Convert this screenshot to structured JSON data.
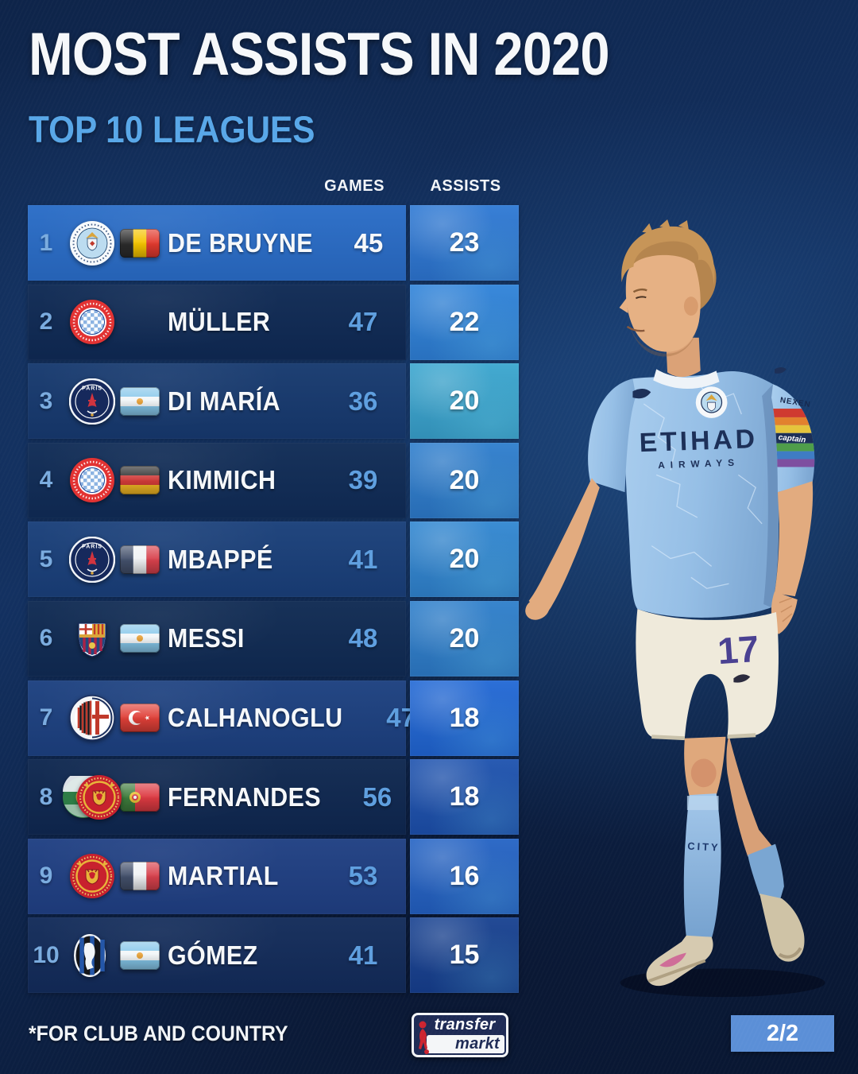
{
  "header": {
    "title": "MOST ASSISTS IN 2020",
    "subtitle": "TOP 10 LEAGUES"
  },
  "table": {
    "columns": {
      "games": "GAMES",
      "assists": "ASSISTS"
    },
    "rows": [
      {
        "rank": "1",
        "name": "DE BRUYNE",
        "clubs": [
          "manchester-city"
        ],
        "flag": "belgium",
        "games": "45",
        "assists": "23",
        "highlight": true,
        "colors": {
          "row": "#2a6dc7",
          "assist": "#2e79d4"
        }
      },
      {
        "rank": "2",
        "name": "MÜLLER",
        "clubs": [
          "bayern-munich"
        ],
        "flag": null,
        "games": "47",
        "assists": "22",
        "highlight": false,
        "colors": {
          "row": "#0f2a54",
          "assist": "#2f83d9"
        }
      },
      {
        "rank": "3",
        "name": "DI MARÍA",
        "clubs": [
          "psg"
        ],
        "flag": "argentina",
        "games": "36",
        "assists": "20",
        "highlight": false,
        "colors": {
          "row": "#173a6f",
          "assist": "#3aa6cf"
        }
      },
      {
        "rank": "4",
        "name": "KIMMICH",
        "clubs": [
          "bayern-munich"
        ],
        "flag": "germany",
        "games": "39",
        "assists": "20",
        "highlight": false,
        "colors": {
          "row": "#102c56",
          "assist": "#2e7ecd"
        }
      },
      {
        "rank": "5",
        "name": "MBAPPÉ",
        "clubs": [
          "psg"
        ],
        "flag": "france",
        "games": "41",
        "assists": "20",
        "highlight": false,
        "colors": {
          "row": "#1a407a",
          "assist": "#3187d1"
        }
      },
      {
        "rank": "6",
        "name": "MESSI",
        "clubs": [
          "barcelona"
        ],
        "flag": "argentina",
        "games": "48",
        "assists": "20",
        "highlight": false,
        "colors": {
          "row": "#102b53",
          "assist": "#2e7fcb"
        }
      },
      {
        "rank": "7",
        "name": "CALHANOGLU",
        "clubs": [
          "ac-milan"
        ],
        "flag": "turkey",
        "games": "47",
        "assists": "18",
        "highlight": false,
        "colors": {
          "row": "#1d4180",
          "assist": "#2168d5"
        }
      },
      {
        "rank": "8",
        "name": "FERNANDES",
        "clubs": [
          "sporting-cp",
          "manchester-united"
        ],
        "flag": "portugal",
        "games": "56",
        "assists": "18",
        "highlight": false,
        "colors": {
          "row": "#0f2850",
          "assist": "#1d52ae"
        }
      },
      {
        "rank": "9",
        "name": "MARTIAL",
        "clubs": [
          "manchester-united"
        ],
        "flag": "france",
        "games": "53",
        "assists": "16",
        "highlight": false,
        "colors": {
          "row": "#204083",
          "assist": "#2463c4"
        }
      },
      {
        "rank": "10",
        "name": "GÓMEZ",
        "clubs": [
          "atalanta"
        ],
        "flag": "argentina",
        "games": "41",
        "assists": "15",
        "highlight": false,
        "colors": {
          "row": "#132c5a",
          "assist": "#174190"
        }
      }
    ]
  },
  "player": {
    "description": "Kevin De Bruyne in Manchester City home kit",
    "shirt_sponsor_line1": "ETIHAD",
    "shirt_sponsor_line2": "AIRWAYS",
    "sleeve_sponsor": "NEXEN",
    "armband_text": "captain",
    "shorts_number": "17",
    "sock_text": "CITY"
  },
  "footer": {
    "note": "*FOR CLUB AND COUNTRY",
    "logo": {
      "line1": "transfer",
      "line2": "markt"
    },
    "page_indicator": "2/2"
  },
  "colors": {
    "background": "#0e2449",
    "subtitle": "#58a7e8",
    "rank": "#7bacdf",
    "games_number": "#5f9fdf",
    "page_badge": "#5b8fd7"
  }
}
